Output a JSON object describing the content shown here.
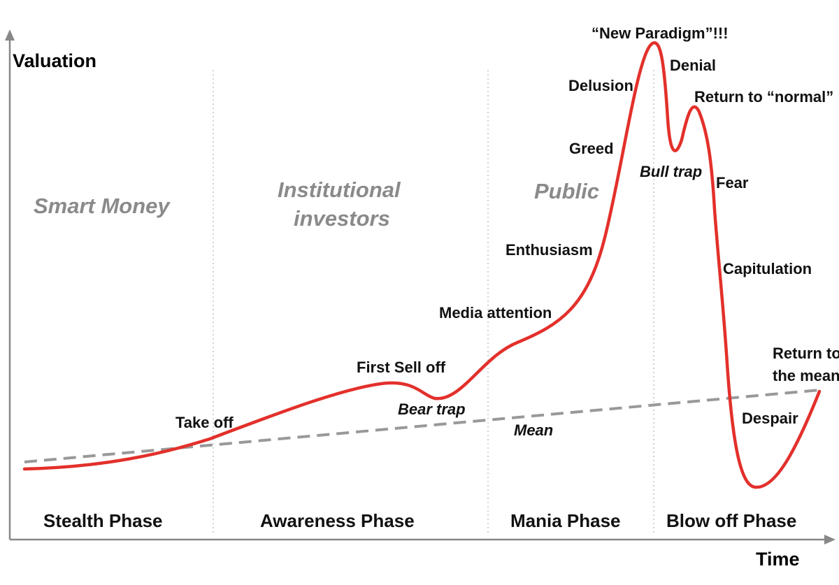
{
  "axes": {
    "y_label": "Valuation",
    "x_label": "Time"
  },
  "groups": {
    "smart_money": "Smart Money",
    "institutional_1": "Institutional",
    "institutional_2": "investors",
    "public": "Public"
  },
  "phases": {
    "stealth": "Stealth Phase",
    "awareness": "Awareness Phase",
    "mania": "Mania Phase",
    "blowoff": "Blow off Phase"
  },
  "stages": {
    "take_off": "Take off",
    "first_sell_off": "First Sell off",
    "bear_trap": "Bear trap",
    "media_attention": "Media attention",
    "enthusiasm": "Enthusiasm",
    "greed": "Greed",
    "delusion": "Delusion",
    "new_paradigm": "“New Paradigm”!!!",
    "denial": "Denial",
    "bull_trap": "Bull trap",
    "return_normal": "Return to “normal”",
    "fear": "Fear",
    "capitulation": "Capitulation",
    "despair": "Despair",
    "return_mean_1": "Return to",
    "return_mean_2": "the mean",
    "mean": "Mean"
  },
  "colors": {
    "curve": "#e3302b",
    "mean_line": "#999999",
    "axis": "#888888",
    "divider": "#b8c8c8",
    "group_text": "#8a8a8a"
  }
}
